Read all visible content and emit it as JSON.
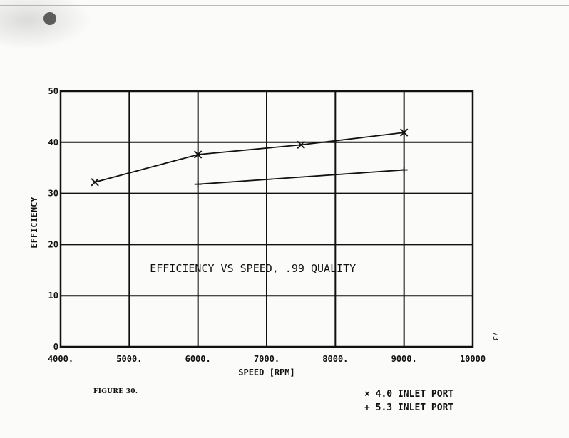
{
  "chart_data": {
    "type": "line",
    "title": "EFFICIENCY VS SPEED, .99 QUALITY",
    "xlabel": "SPEED [RPM]",
    "ylabel": "EFFICIENCY",
    "xlim": [
      4000,
      10000
    ],
    "ylim": [
      0,
      50
    ],
    "x_ticks": [
      4000,
      5000,
      6000,
      7000,
      8000,
      9000,
      10000
    ],
    "x_tick_labels": [
      "4000.",
      "5000.",
      "6000.",
      "7000.",
      "8000.",
      "9000.",
      "10000"
    ],
    "y_ticks": [
      0,
      10,
      20,
      30,
      40,
      50
    ],
    "y_tick_labels": [
      "0",
      "10",
      "20",
      "30",
      "40",
      "50"
    ],
    "grid": true,
    "legend_position": "below-right",
    "series": [
      {
        "name": "4.0 INLET PORT",
        "marker": "x",
        "legend_symbol": "×",
        "points": [
          [
            4500,
            32.2
          ],
          [
            6000,
            37.6
          ],
          [
            7500,
            39.5
          ],
          [
            9000,
            41.9
          ]
        ]
      },
      {
        "name": "5.3 INLET PORT",
        "marker": "+",
        "legend_symbol": "+",
        "points": [
          [
            6000,
            31.8
          ],
          [
            9000,
            34.6
          ]
        ]
      }
    ]
  },
  "figure_caption": "FIGURE 30.",
  "page_number": "73"
}
